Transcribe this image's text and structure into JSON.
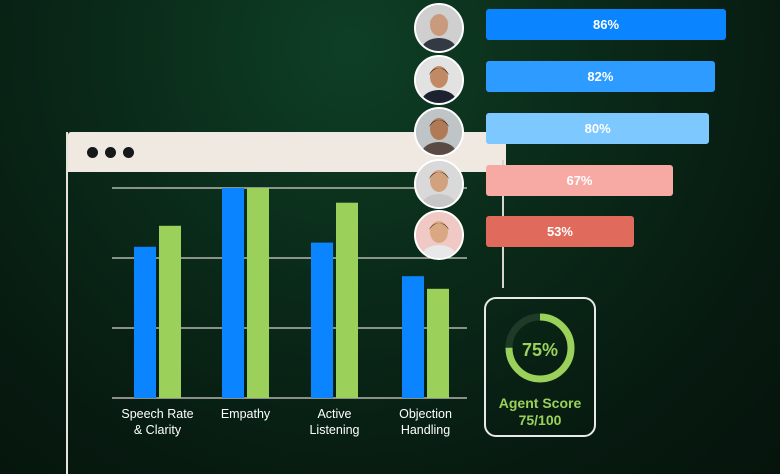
{
  "colors": {
    "blue": "#0a84ff",
    "green": "#9bd15a",
    "background": "#0a2a19"
  },
  "window": {
    "dots": [
      "dot",
      "dot",
      "dot"
    ]
  },
  "chart_data": {
    "type": "bar",
    "categories": [
      "Speech Rate\n& Clarity",
      "Empathy",
      "Active\nListening",
      "Objection\nHandling"
    ],
    "series": [
      {
        "color": "#0a84ff",
        "values": [
          72,
          100,
          74,
          58
        ]
      },
      {
        "color": "#9bd15a",
        "values": [
          82,
          100,
          93,
          52
        ]
      }
    ],
    "ylim": [
      0,
      100
    ],
    "grid": true
  },
  "agents": [
    {
      "score": "86%",
      "value": 86,
      "color": "#0a84ff",
      "icon": "agent-avatar-icon"
    },
    {
      "score": "82%",
      "value": 82,
      "color": "#2d9bff",
      "icon": "agent-avatar-icon"
    },
    {
      "score": "80%",
      "value": 80,
      "color": "#7cc8ff",
      "icon": "agent-avatar-icon"
    },
    {
      "score": "67%",
      "value": 67,
      "color": "#f7aaa3",
      "icon": "agent-avatar-icon"
    },
    {
      "score": "53%",
      "value": 53,
      "color": "#e06a5c",
      "icon": "agent-avatar-icon"
    }
  ],
  "score_card": {
    "percent": "75%",
    "value": 75,
    "title": "Agent Score",
    "fraction": "75/100"
  }
}
